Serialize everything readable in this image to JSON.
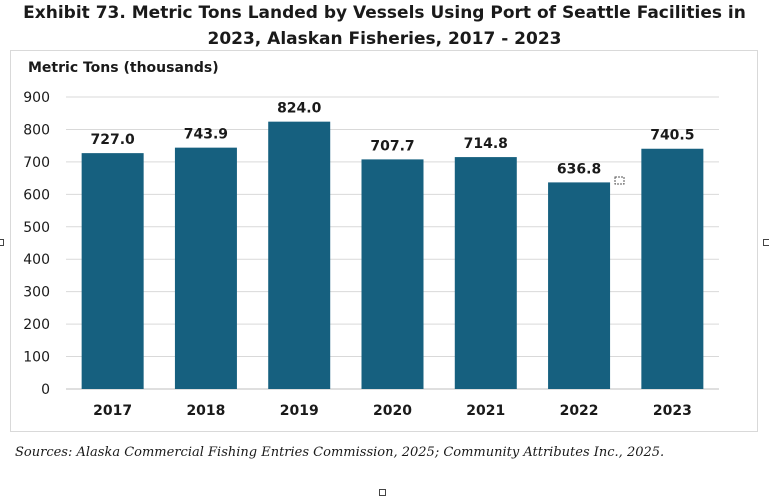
{
  "chart_data": {
    "type": "bar",
    "title_line1": "Exhibit 73. Metric Tons Landed by Vessels Using Port of Seattle Facilities in",
    "title_line2": "2023, Alaskan Fisheries, 2017 - 2023",
    "ylabel": "Metric Tons (thousands)",
    "xlabel": "",
    "categories": [
      "2017",
      "2018",
      "2019",
      "2020",
      "2021",
      "2022",
      "2023"
    ],
    "values": [
      727.0,
      743.9,
      824.0,
      707.7,
      714.8,
      636.8,
      740.5
    ],
    "value_labels": [
      "727.0",
      "743.9",
      "824.0",
      "707.7",
      "714.8",
      "636.8",
      "740.5"
    ],
    "ylim": [
      0,
      900
    ],
    "yticks": [
      0,
      100,
      200,
      300,
      400,
      500,
      600,
      700,
      800,
      900
    ],
    "grid": true,
    "legend": "none",
    "bar_color": "#16607f"
  },
  "source_text": "Sources: Alaska Commercial Fishing Entries Commission, 2025; Community Attributes Inc., 2025."
}
